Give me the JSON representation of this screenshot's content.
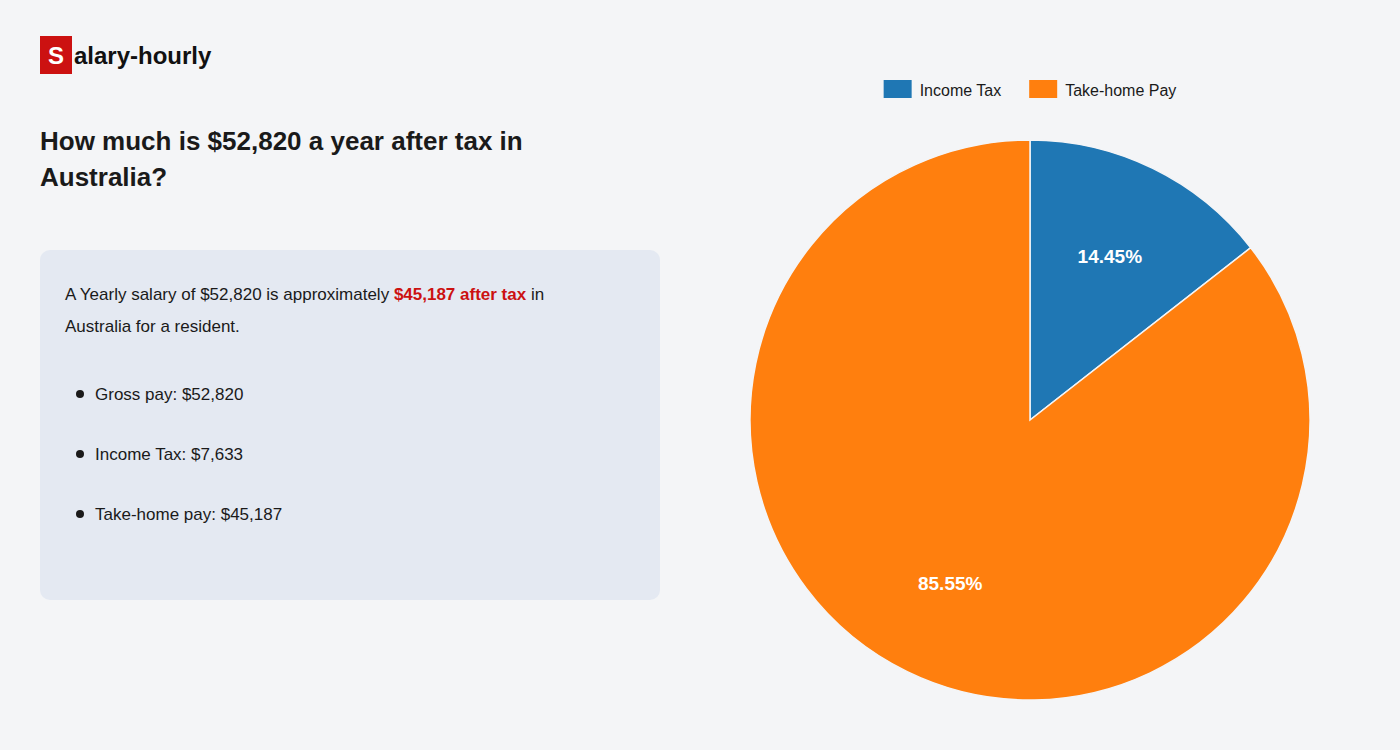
{
  "chart_data": {
    "type": "pie",
    "title": [
      "How much is $52,820 a year after tax in",
      "Australia?"
    ],
    "logo": {
      "texts": [
        "S",
        "alary-hourly"
      ],
      "color": "#cc1111"
    },
    "body": [
      [
        {
          "text": "A Yearly salary of $52,820 is approximately "
        },
        {
          "text": "$45,187 after tax",
          "color": "#cc1111"
        },
        {
          "text": " in"
        }
      ],
      [
        {
          "text": "Australia for a resident."
        }
      ]
    ],
    "bullets": [
      "Gross pay: $52,820",
      "Income Tax: $7,633",
      "Take-home pay: $45,187"
    ],
    "categories": [
      "Income Tax",
      "Take-home Pay"
    ],
    "values": [
      14.45,
      85.55
    ],
    "value_labels": [
      "14.45%",
      "85.55%"
    ],
    "data_labels": true,
    "legend": "top"
  }
}
